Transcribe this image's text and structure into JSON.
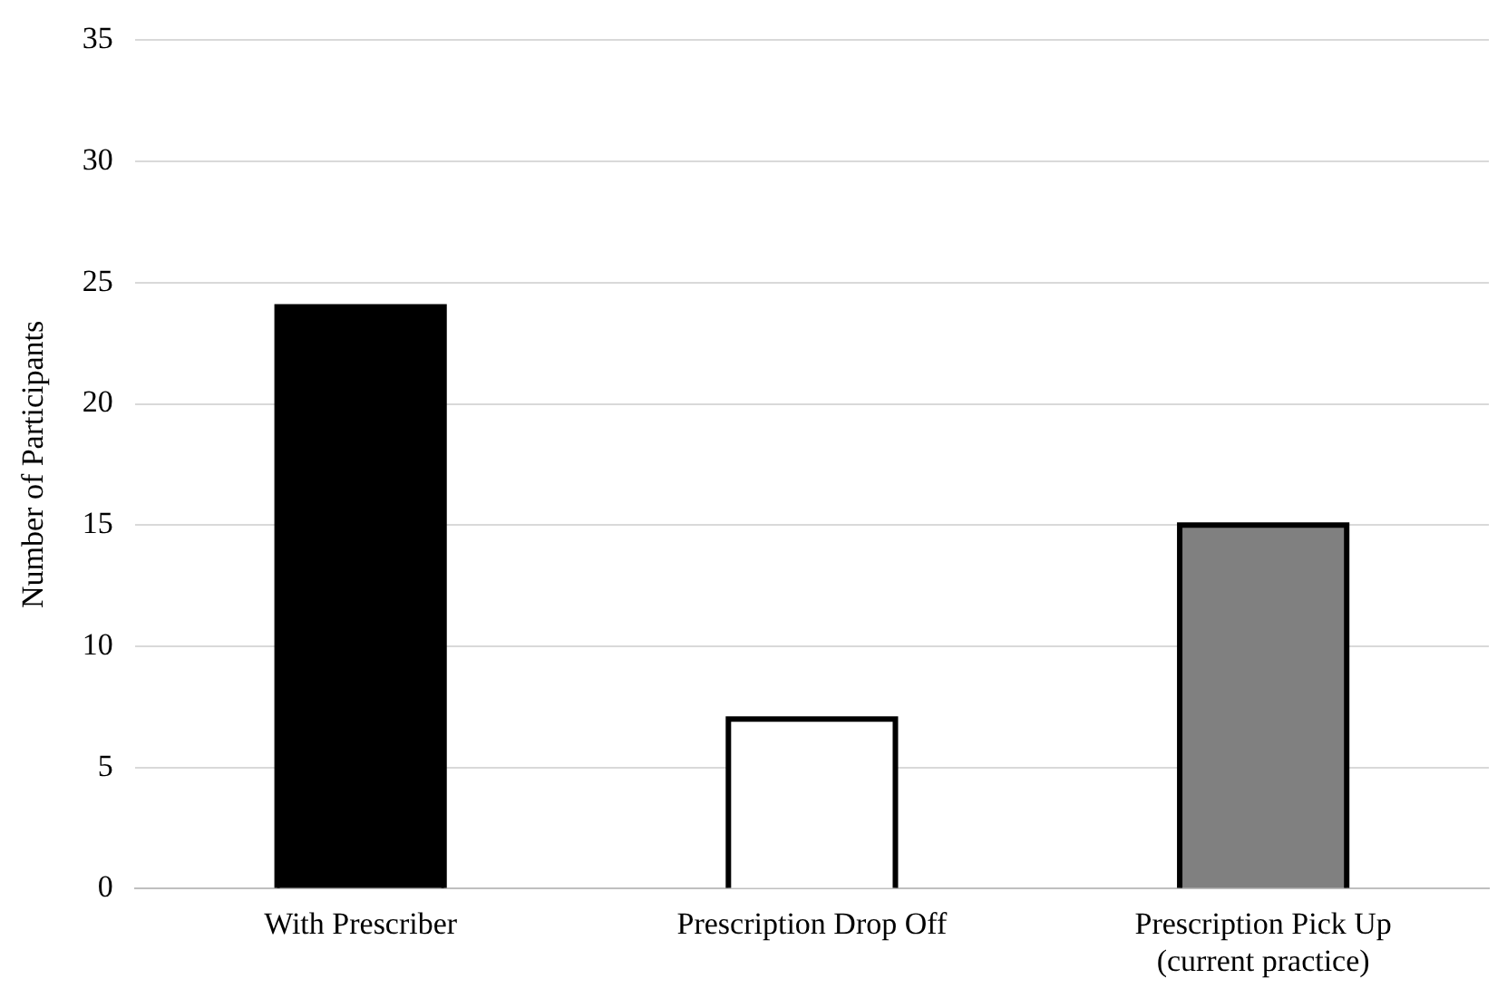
{
  "chart_data": {
    "type": "bar",
    "ylabel": "Number of Participants",
    "categories": [
      "With Prescriber",
      "Prescription Drop Off",
      "Prescription Pick Up\n(current practice)"
    ],
    "values": [
      24,
      7,
      15
    ],
    "colors": [
      "#000000",
      "#ffffff",
      "#808080"
    ],
    "ylim": [
      0,
      35
    ],
    "yticks": [
      0,
      5,
      10,
      15,
      20,
      25,
      30,
      35
    ],
    "grid": "y",
    "legend": false
  }
}
